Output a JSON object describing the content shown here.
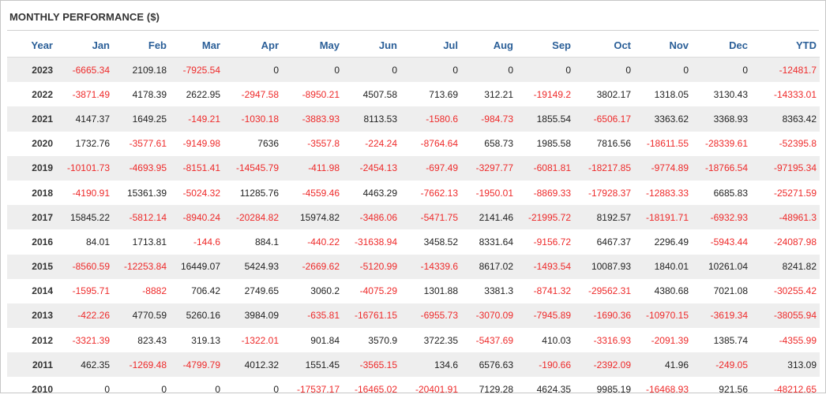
{
  "title": "MONTHLY PERFORMANCE ($)",
  "columns": [
    "Year",
    "Jan",
    "Feb",
    "Mar",
    "Apr",
    "May",
    "Jun",
    "Jul",
    "Aug",
    "Sep",
    "Oct",
    "Nov",
    "Dec",
    "YTD"
  ],
  "rows": [
    [
      "2023",
      "-6665.34",
      "2109.18",
      "-7925.54",
      "0",
      "0",
      "0",
      "0",
      "0",
      "0",
      "0",
      "0",
      "0",
      "-12481.7"
    ],
    [
      "2022",
      "-3871.49",
      "4178.39",
      "2622.95",
      "-2947.58",
      "-8950.21",
      "4507.58",
      "713.69",
      "312.21",
      "-19149.2",
      "3802.17",
      "1318.05",
      "3130.43",
      "-14333.01"
    ],
    [
      "2021",
      "4147.37",
      "1649.25",
      "-149.21",
      "-1030.18",
      "-3883.93",
      "8113.53",
      "-1580.6",
      "-984.73",
      "1855.54",
      "-6506.17",
      "3363.62",
      "3368.93",
      "8363.42"
    ],
    [
      "2020",
      "1732.76",
      "-3577.61",
      "-9149.98",
      "7636",
      "-3557.8",
      "-224.24",
      "-8764.64",
      "658.73",
      "1985.58",
      "7816.56",
      "-18611.55",
      "-28339.61",
      "-52395.8"
    ],
    [
      "2019",
      "-10101.73",
      "-4693.95",
      "-8151.41",
      "-14545.79",
      "-411.98",
      "-2454.13",
      "-697.49",
      "-3297.77",
      "-6081.81",
      "-18217.85",
      "-9774.89",
      "-18766.54",
      "-97195.34"
    ],
    [
      "2018",
      "-4190.91",
      "15361.39",
      "-5024.32",
      "11285.76",
      "-4559.46",
      "4463.29",
      "-7662.13",
      "-1950.01",
      "-8869.33",
      "-17928.37",
      "-12883.33",
      "6685.83",
      "-25271.59"
    ],
    [
      "2017",
      "15845.22",
      "-5812.14",
      "-8940.24",
      "-20284.82",
      "15974.82",
      "-3486.06",
      "-5471.75",
      "2141.46",
      "-21995.72",
      "8192.57",
      "-18191.71",
      "-6932.93",
      "-48961.3"
    ],
    [
      "2016",
      "84.01",
      "1713.81",
      "-144.6",
      "884.1",
      "-440.22",
      "-31638.94",
      "3458.52",
      "8331.64",
      "-9156.72",
      "6467.37",
      "2296.49",
      "-5943.44",
      "-24087.98"
    ],
    [
      "2015",
      "-8560.59",
      "-12253.84",
      "16449.07",
      "5424.93",
      "-2669.62",
      "-5120.99",
      "-14339.6",
      "8617.02",
      "-1493.54",
      "10087.93",
      "1840.01",
      "10261.04",
      "8241.82"
    ],
    [
      "2014",
      "-1595.71",
      "-8882",
      "706.42",
      "2749.65",
      "3060.2",
      "-4075.29",
      "1301.88",
      "3381.3",
      "-8741.32",
      "-29562.31",
      "4380.68",
      "7021.08",
      "-30255.42"
    ],
    [
      "2013",
      "-422.26",
      "4770.59",
      "5260.16",
      "3984.09",
      "-635.81",
      "-16761.15",
      "-6955.73",
      "-3070.09",
      "-7945.89",
      "-1690.36",
      "-10970.15",
      "-3619.34",
      "-38055.94"
    ],
    [
      "2012",
      "-3321.39",
      "823.43",
      "319.13",
      "-1322.01",
      "901.84",
      "3570.9",
      "3722.35",
      "-5437.69",
      "410.03",
      "-3316.93",
      "-2091.39",
      "1385.74",
      "-4355.99"
    ],
    [
      "2011",
      "462.35",
      "-1269.48",
      "-4799.79",
      "4012.32",
      "1551.45",
      "-3565.15",
      "134.6",
      "6576.63",
      "-190.66",
      "-2392.09",
      "41.96",
      "-249.05",
      "313.09"
    ],
    [
      "2010",
      "0",
      "0",
      "0",
      "0",
      "-17537.17",
      "-16465.02",
      "-20401.91",
      "7129.28",
      "4624.35",
      "9985.19",
      "-16468.93",
      "921.56",
      "-48212.65"
    ]
  ],
  "colors": {
    "negative": "#ee2a2a",
    "header": "#2b5f98",
    "stripe": "#eeeeee"
  }
}
